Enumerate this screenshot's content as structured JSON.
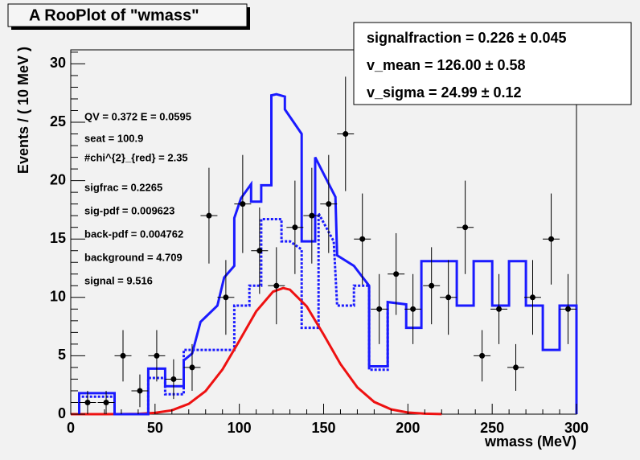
{
  "chart_data": {
    "type": "scatter",
    "title": "A RooPlot of \"wmass\"",
    "xlabel": "wmass (MeV)",
    "ylabel": "Events / ( 10 MeV )",
    "xlim": [
      0,
      300
    ],
    "ylim": [
      0,
      31.2
    ],
    "xticks": [
      0,
      50,
      100,
      150,
      200,
      250,
      300
    ],
    "yticks": [
      0,
      5,
      10,
      15,
      20,
      25,
      30
    ],
    "stats": [
      "signalfraction =  0.226 ± 0.045",
      "v_mean =  126.00 ± 0.58",
      "v_sigma =  24.99 ± 0.12"
    ],
    "annotations": [
      "QV = 0.372 E = 0.0595",
      "seat = 100.9",
      "#chi^{2}_{red} = 2.35",
      "sigfrac = 0.2265",
      "sig-pdf = 0.009623",
      "back-pdf = 0.004762",
      "background = 4.709",
      "signal = 9.516"
    ],
    "points": {
      "color": "#000000",
      "x": [
        10,
        21,
        31,
        41,
        51,
        61,
        72,
        82,
        92,
        102,
        112,
        122,
        133,
        143,
        153,
        163,
        173,
        183,
        193,
        203,
        214,
        224,
        234,
        244,
        254,
        264,
        274,
        285,
        295
      ],
      "y": [
        1,
        1,
        5,
        2,
        5,
        3,
        4,
        17,
        10,
        18,
        14,
        11,
        16,
        17,
        18,
        24,
        15,
        9,
        12,
        9,
        11,
        10,
        16,
        5,
        9,
        4,
        10,
        15,
        9
      ],
      "errors": [
        1,
        1,
        2.2,
        1.4,
        2.2,
        1.7,
        2,
        4.1,
        3.2,
        4.2,
        3.7,
        3.3,
        4,
        4.1,
        4.2,
        4.9,
        3.9,
        3,
        3.5,
        3,
        3.3,
        3.2,
        4,
        2.2,
        3,
        2,
        3.2,
        3.9,
        3
      ]
    },
    "curves": [
      {
        "color": "#1a1aff",
        "style": "dotted",
        "x": [
          5,
          5,
          26,
          26,
          46,
          46,
          56,
          56,
          67,
          67,
          97,
          97,
          106,
          106,
          113,
          113,
          125,
          125,
          130,
          137,
          137,
          147,
          147,
          156,
          158,
          168,
          168,
          177,
          177,
          188,
          188
        ],
        "y": [
          0,
          1.5,
          1.5,
          0,
          0,
          3.1,
          3.1,
          1.7,
          1.7,
          5.5,
          5.5,
          9.3,
          9.3,
          11,
          11,
          16.7,
          16.7,
          14.8,
          14.8,
          14.1,
          7.4,
          7.4,
          17.2,
          14.8,
          9.3,
          9.3,
          11,
          11,
          3.8,
          3.8,
          9.6
        ]
      },
      {
        "color": "#ee1111",
        "style": "solid",
        "x": [
          0,
          10,
          20,
          30,
          40,
          50,
          60,
          70,
          80,
          90,
          100,
          110,
          120,
          126,
          130,
          140,
          150,
          160,
          170,
          180,
          190,
          200,
          210,
          220
        ],
        "y": [
          0,
          0,
          0,
          0.01,
          0.03,
          0.11,
          0.33,
          0.88,
          1.98,
          3.83,
          6.29,
          8.8,
          10.49,
          10.8,
          10.66,
          9.23,
          6.82,
          4.29,
          2.3,
          1.05,
          0.41,
          0.14,
          0.04,
          0.01
        ]
      },
      {
        "color": "#1a1aff",
        "style": "solid",
        "x": [
          5,
          5,
          26,
          26,
          46,
          46,
          56,
          56,
          67,
          67,
          72,
          77,
          87,
          91,
          97,
          97,
          101,
          107,
          107,
          113,
          113,
          119,
          119,
          122,
          127,
          127,
          137,
          137,
          145,
          145,
          157,
          158,
          168,
          177,
          177,
          188,
          188,
          199,
          199,
          208,
          208,
          229,
          229,
          239,
          239,
          250,
          250,
          260,
          260,
          270,
          270,
          280,
          280,
          290,
          290,
          300,
          300
        ],
        "y": [
          0,
          1.8,
          1.8,
          0,
          0,
          3.9,
          3.9,
          2.4,
          2.4,
          4.6,
          5.2,
          7.9,
          9.3,
          11.7,
          12.7,
          16.8,
          18.5,
          19.7,
          18.2,
          18.2,
          19.6,
          19.6,
          27.3,
          27.4,
          27.2,
          26.1,
          24,
          14.8,
          14.8,
          22,
          18.6,
          13.6,
          12.7,
          11,
          4.1,
          4.1,
          9.6,
          9.4,
          7.4,
          7.4,
          13.1,
          13.1,
          9.3,
          9.3,
          13.1,
          13.1,
          9.3,
          9.3,
          13.1,
          13.1,
          9.3,
          9.3,
          5.5,
          5.5,
          9.3,
          9.3,
          0
        ]
      }
    ]
  }
}
